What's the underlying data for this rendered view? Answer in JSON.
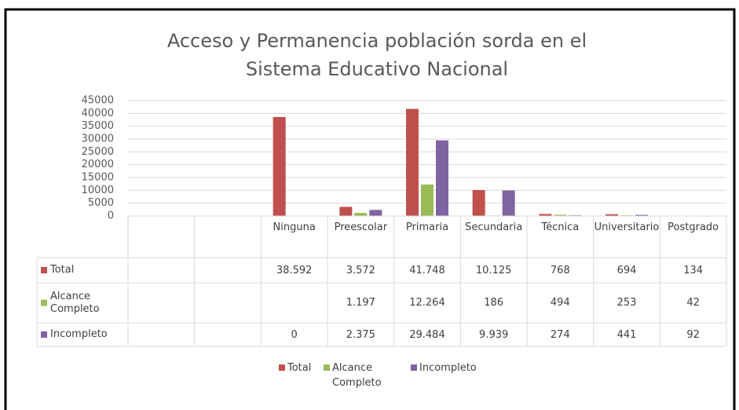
{
  "chart_data": {
    "type": "bar",
    "title": "Acceso y Permanencia población sorda en el Sistema Educativo Nacional",
    "categories": [
      null,
      null,
      "Ninguna",
      "Preescolar",
      "Primaria",
      "Secundaria",
      "Técnica",
      "Universitario",
      "Postgrado"
    ],
    "series": [
      {
        "name": "Total",
        "color": "#c0504d",
        "values": [
          null,
          null,
          38592,
          3572,
          41748,
          10125,
          768,
          694,
          134
        ],
        "value_labels": [
          null,
          null,
          "38.592",
          "3.572",
          "41.748",
          "10.125",
          "768",
          "694",
          "134"
        ]
      },
      {
        "name": "Alcance Completo",
        "color": "#9bbb59",
        "values": [
          null,
          null,
          null,
          1197,
          12264,
          186,
          494,
          253,
          42
        ],
        "value_labels": [
          null,
          null,
          null,
          "1.197",
          "12.264",
          "186",
          "494",
          "253",
          "42"
        ]
      },
      {
        "name": "Incompleto",
        "color": "#8064a2",
        "values": [
          null,
          null,
          0,
          2375,
          29484,
          9939,
          274,
          441,
          92
        ],
        "value_labels": [
          null,
          null,
          "0",
          "2.375",
          "29.484",
          "9.939",
          "274",
          "441",
          "92"
        ]
      }
    ],
    "ylim": [
      0,
      45000
    ],
    "yticks": [
      0,
      5000,
      10000,
      15000,
      20000,
      25000,
      30000,
      35000,
      40000,
      45000
    ],
    "grid": true,
    "legend": "bottom",
    "data_table": true
  }
}
